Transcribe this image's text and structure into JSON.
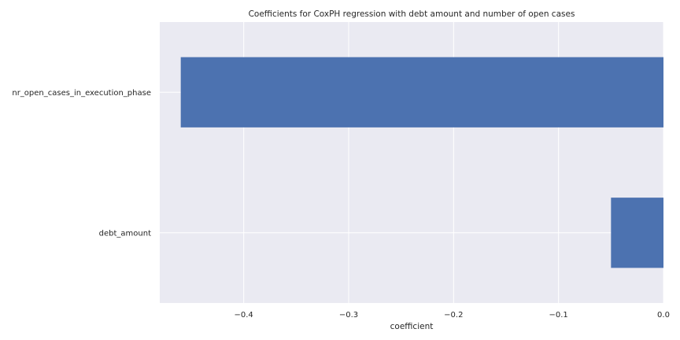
{
  "chart_data": {
    "type": "bar",
    "orientation": "horizontal",
    "title": "Coefficients for CoxPH regression with debt amount and number of open cases",
    "xlabel": "coefficient",
    "ylabel": "",
    "categories": [
      "nr_open_cases_in_execution_phase",
      "debt_amount"
    ],
    "values": [
      -0.46,
      -0.05
    ],
    "xlim": [
      -0.48,
      0.0
    ],
    "xticks": [
      -0.4,
      -0.3,
      -0.2,
      -0.1,
      0.0
    ],
    "xtick_labels": [
      "−0.4",
      "−0.3",
      "−0.2",
      "−0.1",
      "0.0"
    ],
    "grid": true,
    "legend": "none",
    "colors": {
      "bar": "#4c72b0",
      "plot_bg": "#eaeaf2",
      "grid": "#ffffff"
    }
  }
}
